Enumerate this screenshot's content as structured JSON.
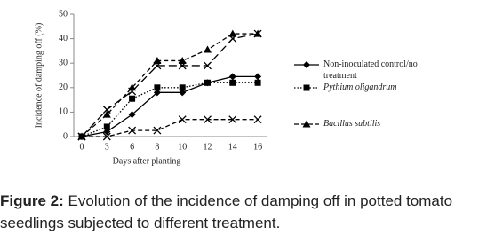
{
  "chart_data": {
    "type": "line",
    "xlabel": "Days after planting",
    "ylabel": "Incidence of damping off (%)",
    "categories": [
      "0",
      "3",
      "6",
      "8",
      "10",
      "12",
      "14",
      "16"
    ],
    "ylim": [
      0,
      50
    ],
    "yticks": [
      0,
      10,
      20,
      30,
      40,
      50
    ],
    "series": [
      {
        "name": "Non-inoculated control/no treatment",
        "color": "#000000",
        "style": "solid",
        "marker": "diamond",
        "values": [
          0,
          2,
          9,
          18,
          18,
          22,
          24.5,
          24.5
        ]
      },
      {
        "name": "Pythium oligandrum",
        "color": "#000000",
        "style": "dotted",
        "marker": "square",
        "values": [
          0,
          4,
          15.5,
          20,
          20,
          22,
          22,
          22
        ]
      },
      {
        "color": "#000000",
        "style": "longdash",
        "marker": "x",
        "values": [
          0,
          11,
          18.5,
          29,
          29,
          29,
          40,
          42
        ]
      },
      {
        "name": "Bacillus subtilis",
        "color": "#000000",
        "style": "dashed",
        "marker": "triangle",
        "values": [
          0,
          9,
          20,
          31,
          31,
          35.5,
          42,
          42
        ]
      },
      {
        "color": "#000000",
        "style": "dashed",
        "marker": "x",
        "values": [
          0,
          0,
          2.5,
          2.5,
          7,
          7,
          7,
          7
        ]
      }
    ]
  },
  "caption": {
    "label": "Figure 2:",
    "text": "Evolution of the incidence of damping off in potted tomato seedlings subjected to different treatment."
  }
}
